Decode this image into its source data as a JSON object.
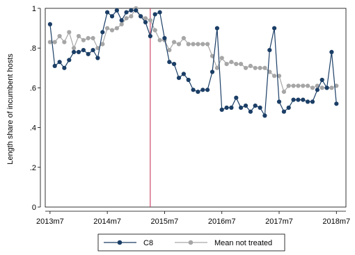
{
  "chart_data": {
    "type": "line",
    "title": "",
    "xlabel": "",
    "ylabel": "Length share of incumbent hosts",
    "xlim": [
      "2013m6",
      "2018m9"
    ],
    "ylim": [
      0,
      1
    ],
    "x_ticks": [
      "2013m7",
      "2014m7",
      "2015m7",
      "2016m7",
      "2017m7",
      "2018m7"
    ],
    "y_ticks": [
      "0",
      ".2",
      ".4",
      ".6",
      ".8",
      "1"
    ],
    "vline": "2015m4",
    "grid": false,
    "legend_position": "bottom",
    "colors": {
      "C8": "#1b3e66",
      "Mean not treated": "#a6a6a6",
      "vline": "#c8385a"
    },
    "start_month": "2013m7",
    "series": [
      {
        "name": "C8",
        "values": [
          0.92,
          0.71,
          0.73,
          0.7,
          0.74,
          0.78,
          0.78,
          0.79,
          0.77,
          0.79,
          0.75,
          0.88,
          0.98,
          0.96,
          0.99,
          0.94,
          0.98,
          0.99,
          0.99,
          0.96,
          0.93,
          0.86,
          0.97,
          0.98,
          0.85,
          0.73,
          0.72,
          0.65,
          0.67,
          0.64,
          0.59,
          0.58,
          0.59,
          0.59,
          0.68,
          0.9,
          0.49,
          0.5,
          0.5,
          0.55,
          0.5,
          0.51,
          0.48,
          0.51,
          0.5,
          0.46,
          0.79,
          0.9,
          0.53,
          0.48,
          0.5,
          0.54,
          0.54,
          0.54,
          0.53,
          0.53,
          0.59,
          0.64,
          0.6,
          0.78,
          0.52
        ]
      },
      {
        "name": "Mean not treated",
        "values": [
          0.83,
          0.83,
          0.86,
          0.83,
          0.88,
          0.8,
          0.86,
          0.84,
          0.85,
          0.85,
          0.8,
          0.82,
          0.9,
          0.89,
          0.9,
          0.92,
          0.95,
          0.96,
          1.0,
          0.96,
          0.95,
          0.94,
          0.89,
          0.84,
          0.84,
          0.79,
          0.83,
          0.82,
          0.85,
          0.82,
          0.82,
          0.82,
          0.82,
          0.82,
          0.76,
          0.7,
          0.75,
          0.72,
          0.73,
          0.72,
          0.72,
          0.7,
          0.71,
          0.7,
          0.7,
          0.7,
          0.68,
          0.66,
          0.66,
          0.58,
          0.61,
          0.61,
          0.61,
          0.61,
          0.61,
          0.6,
          0.61,
          0.6,
          0.6,
          0.6,
          0.61
        ]
      }
    ]
  }
}
